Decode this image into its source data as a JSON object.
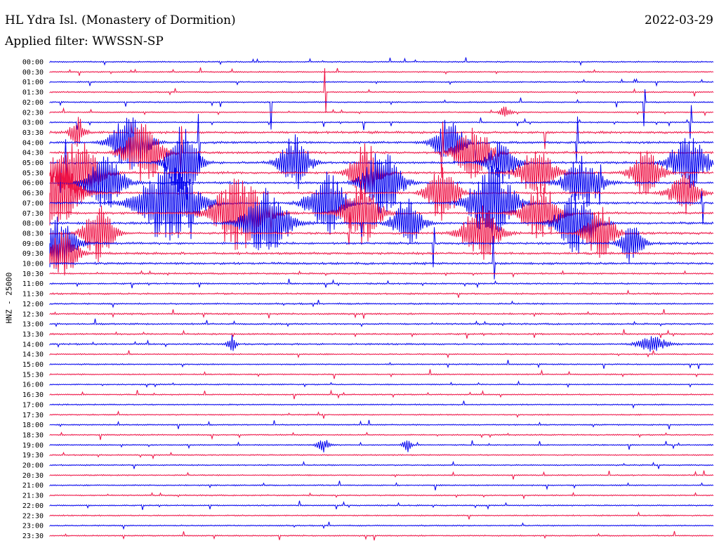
{
  "header": {
    "station": "HL Ydra Isl. (Monastery of Dormition)",
    "date": "2022-03-29",
    "filter": "Applied filter: WWSSN-SP"
  },
  "chart_data": {
    "type": "line",
    "title": "HL Ydra Isl. (Monastery of Dormition)",
    "ylabel": "HNZ - 25000",
    "xlabel": "",
    "rows": [
      "00:00",
      "00:30",
      "01:00",
      "01:30",
      "02:00",
      "02:30",
      "03:00",
      "03:30",
      "04:00",
      "04:30",
      "05:00",
      "05:30",
      "06:00",
      "06:30",
      "07:00",
      "07:30",
      "08:00",
      "08:30",
      "09:00",
      "09:30",
      "10:00",
      "10:30",
      "11:00",
      "11:30",
      "12:00",
      "12:30",
      "13:00",
      "13:30",
      "14:00",
      "14:30",
      "15:00",
      "15:30",
      "16:00",
      "16:30",
      "17:00",
      "17:30",
      "18:00",
      "18:30",
      "19:00",
      "19:30",
      "20:00",
      "20:30",
      "21:00",
      "21:30",
      "22:00",
      "22:30",
      "23:00",
      "23:30"
    ],
    "colors": [
      "#0000ee",
      "#ee1144"
    ],
    "grid": false,
    "legend": "none"
  }
}
